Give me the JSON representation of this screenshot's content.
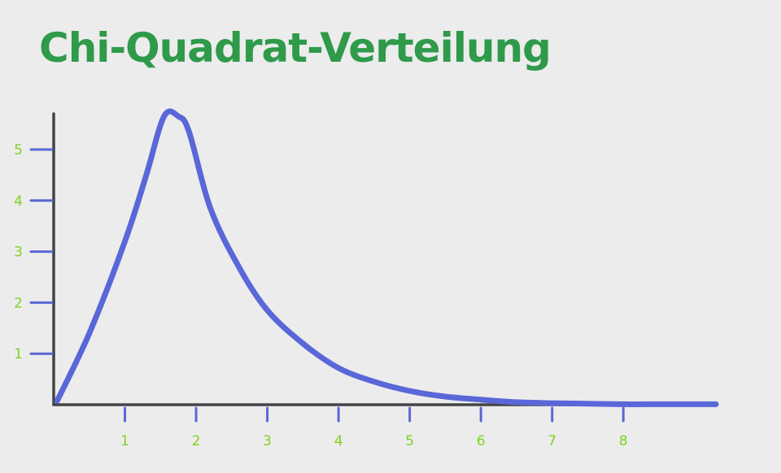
{
  "chart_data": {
    "type": "line",
    "title": "Chi-Quadrat-Verteilung",
    "xlabel": "",
    "ylabel": "",
    "x_ticks": [
      "1",
      "2",
      "3",
      "4",
      "5",
      "6",
      "7",
      "8"
    ],
    "y_ticks": [
      "1",
      "2",
      "3",
      "4",
      "5"
    ],
    "xlim": [
      0,
      9.3
    ],
    "ylim": [
      0,
      5.7
    ],
    "grid": false,
    "series": [
      {
        "x": [
          0.05,
          0.5,
          1.0,
          1.3,
          1.55,
          1.75,
          1.9,
          2.2,
          2.6,
          3.0,
          3.5,
          4.0,
          4.5,
          5.0,
          5.5,
          6.0,
          6.5,
          7.0,
          7.5,
          8.0,
          8.5,
          9.0,
          9.3
        ],
        "y": [
          0.08,
          1.4,
          3.2,
          4.5,
          5.65,
          5.65,
          5.35,
          3.85,
          2.7,
          1.85,
          1.2,
          0.72,
          0.45,
          0.27,
          0.16,
          0.1,
          0.05,
          0.03,
          0.02,
          0.01,
          0.01,
          0.01,
          0.01
        ],
        "color": "#5a67d8"
      }
    ],
    "colors": {
      "title": "#2e9a4a",
      "tick_label": "#7ed321",
      "tick_mark": "#5a67d8",
      "axis": "#444444",
      "background": "#ececec"
    }
  }
}
